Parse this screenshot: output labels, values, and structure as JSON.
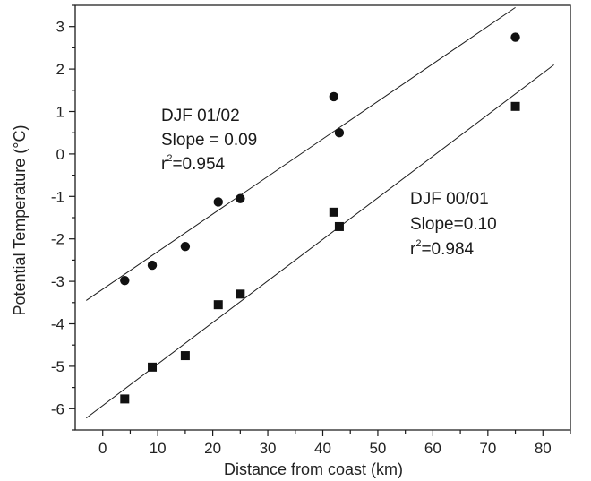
{
  "chart_data": {
    "type": "scatter",
    "title": "",
    "xlabel": "Distance from coast (km)",
    "ylabel": "Potential Temperature (°C)",
    "xlim": [
      -5,
      85
    ],
    "ylim": [
      -6.5,
      3.5
    ],
    "xticks": [
      "0",
      "10",
      "20",
      "30",
      "40",
      "50",
      "60",
      "70",
      "80"
    ],
    "yticks": [
      "-6",
      "-5",
      "-4",
      "-3",
      "-2",
      "-1",
      "0",
      "1",
      "2",
      "3"
    ],
    "grid": false,
    "series": [
      {
        "name": "DJF 01/02",
        "marker": "circle",
        "x": [
          4,
          9,
          15,
          21,
          25,
          42,
          43,
          75
        ],
        "y": [
          -2.98,
          -2.62,
          -2.18,
          -1.13,
          -1.05,
          1.35,
          0.5,
          2.75
        ],
        "fit": {
          "x": [
            -3,
            75
          ],
          "y": [
            -3.45,
            3.45
          ]
        },
        "annotation": {
          "name": "DJF 01/02",
          "slope_text": "Slope = 0.09",
          "r_prefix": "r",
          "r_sup": "2",
          "r_value": "=0.954"
        }
      },
      {
        "name": "DJF 00/01",
        "marker": "square",
        "x": [
          4,
          9,
          15,
          21,
          25,
          42,
          43,
          75
        ],
        "y": [
          -5.77,
          -5.02,
          -4.75,
          -3.55,
          -3.3,
          -1.37,
          -1.71,
          1.12
        ],
        "fit": {
          "x": [
            -3,
            82
          ],
          "y": [
            -6.22,
            2.1
          ]
        },
        "annotation": {
          "name": "DJF 00/01",
          "slope_text": "Slope=0.10",
          "r_prefix": "r",
          "r_sup": "2",
          "r_value": "=0.984"
        }
      }
    ]
  }
}
